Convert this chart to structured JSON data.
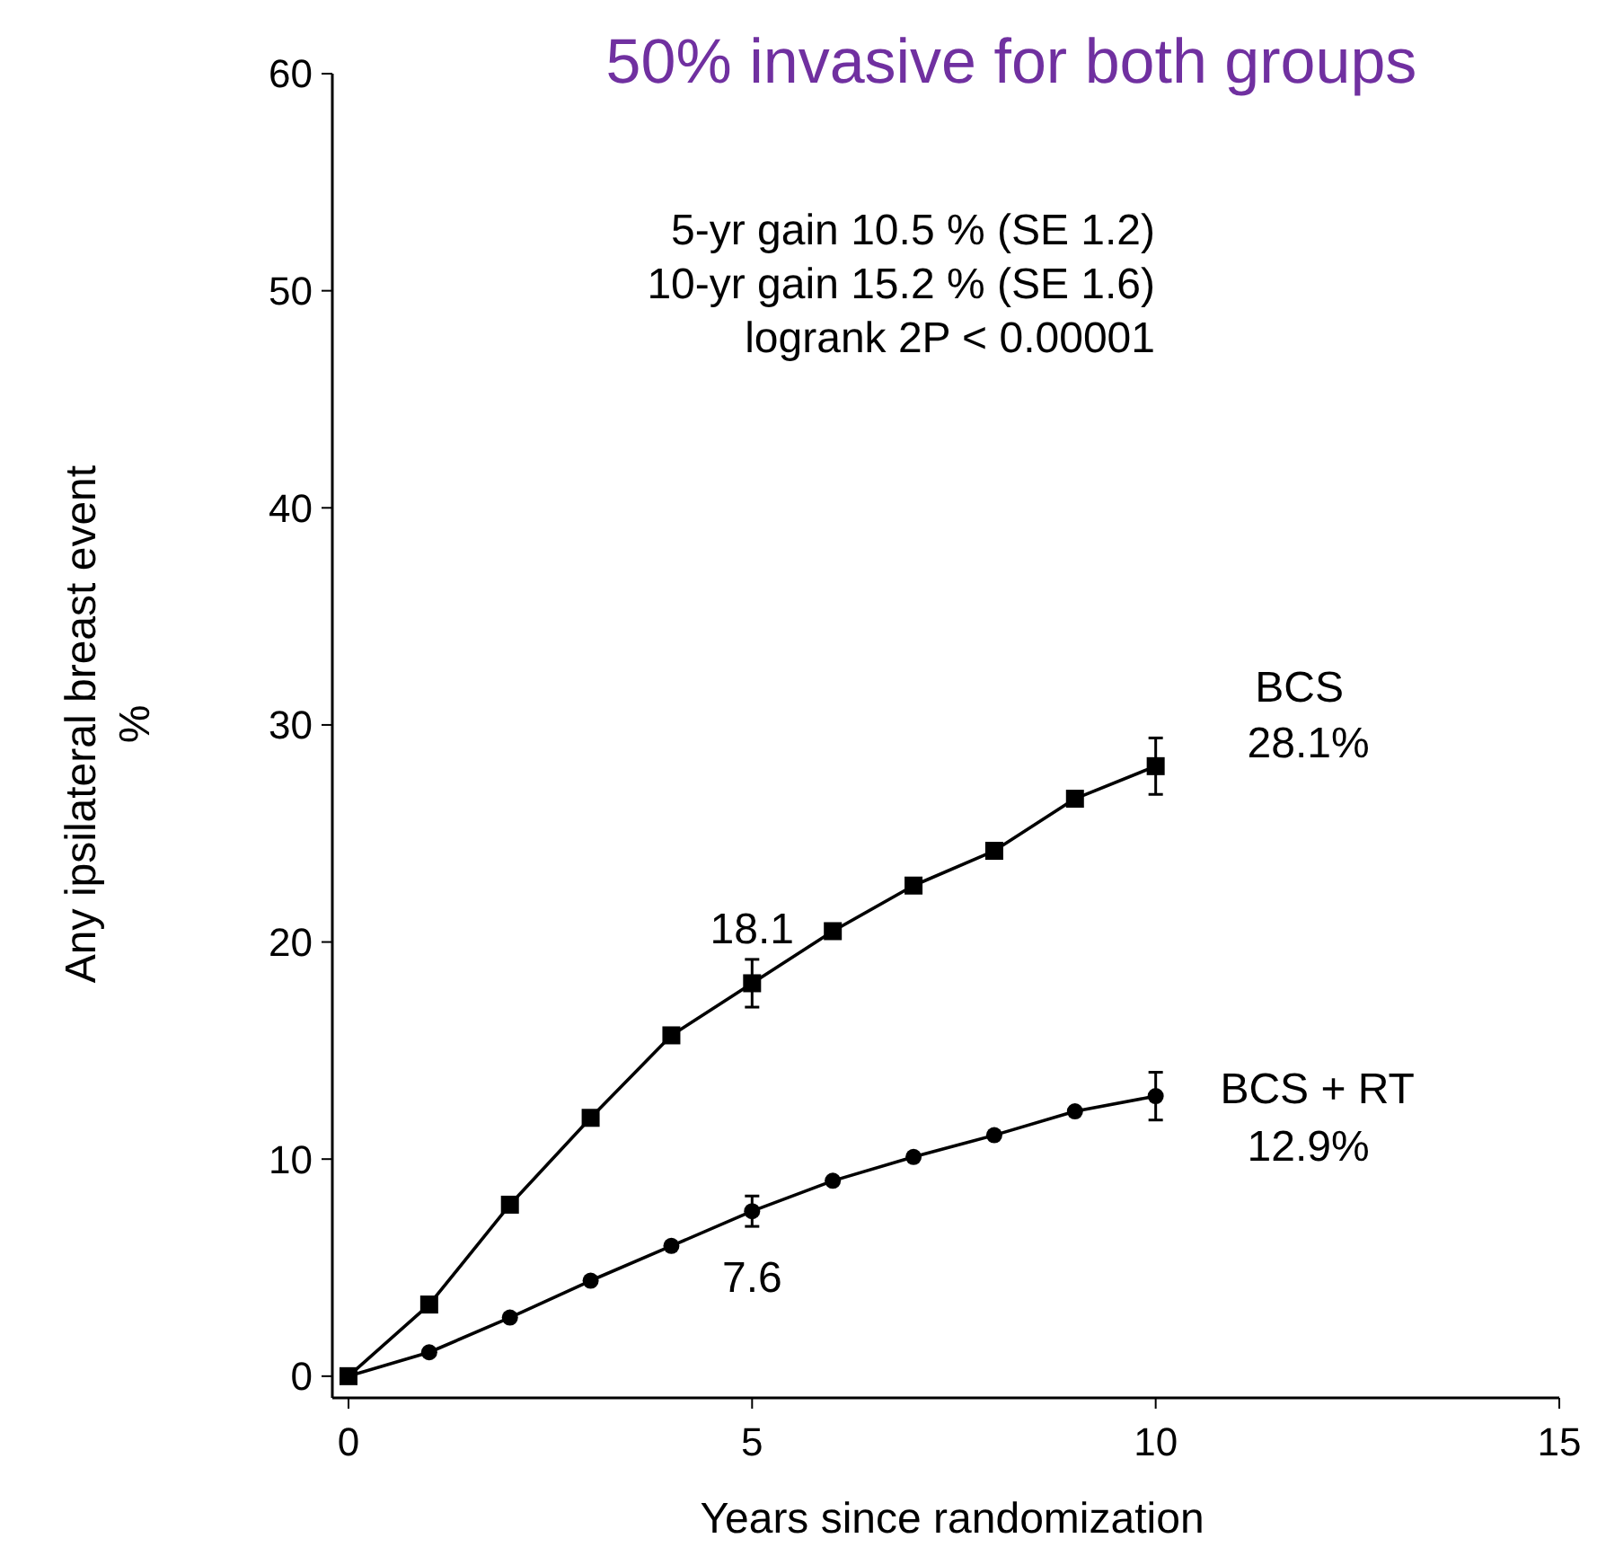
{
  "chart_data": {
    "type": "line",
    "title": "50% invasive for both groups",
    "xlabel": "Years since randomization",
    "ylabel": "Any ipsilateral breast event\n%",
    "x": [
      0,
      1,
      2,
      3,
      4,
      5,
      6,
      7,
      8,
      9,
      10
    ],
    "xlim": [
      -0.2,
      15
    ],
    "xticks": [
      0,
      5,
      10,
      15
    ],
    "ylim": [
      -1,
      60
    ],
    "yticks": [
      0,
      10,
      20,
      30,
      40,
      50,
      60
    ],
    "series": [
      {
        "name": "BCS",
        "color": "#000000",
        "marker": "square",
        "values": [
          0,
          3.3,
          7.9,
          11.9,
          15.7,
          18.1,
          20.5,
          22.6,
          24.2,
          26.6,
          28.1
        ],
        "errors": [
          null,
          null,
          null,
          null,
          null,
          1.1,
          null,
          null,
          null,
          null,
          1.3
        ],
        "value_labels": [
          null,
          null,
          null,
          null,
          null,
          "18.1",
          null,
          null,
          null,
          null,
          null
        ]
      },
      {
        "name": "BCS + RT",
        "color": "#000000",
        "marker": "circle",
        "values": [
          0,
          1.1,
          2.7,
          4.4,
          6.0,
          7.6,
          9.0,
          10.1,
          11.1,
          12.2,
          12.9
        ],
        "errors": [
          null,
          null,
          null,
          null,
          null,
          0.7,
          null,
          null,
          null,
          null,
          1.1
        ],
        "value_labels": [
          null,
          null,
          null,
          null,
          null,
          "7.6",
          null,
          null,
          null,
          null,
          null
        ]
      }
    ],
    "annotations": [
      "5-yr gain 10.5 % (SE 1.2)\n10-yr gain 15.2 % (SE 1.6)\nlogrank 2P < 0.00001",
      "28.1%",
      "12.9%"
    ],
    "grid": false,
    "legend": false,
    "line_style": "solid"
  }
}
